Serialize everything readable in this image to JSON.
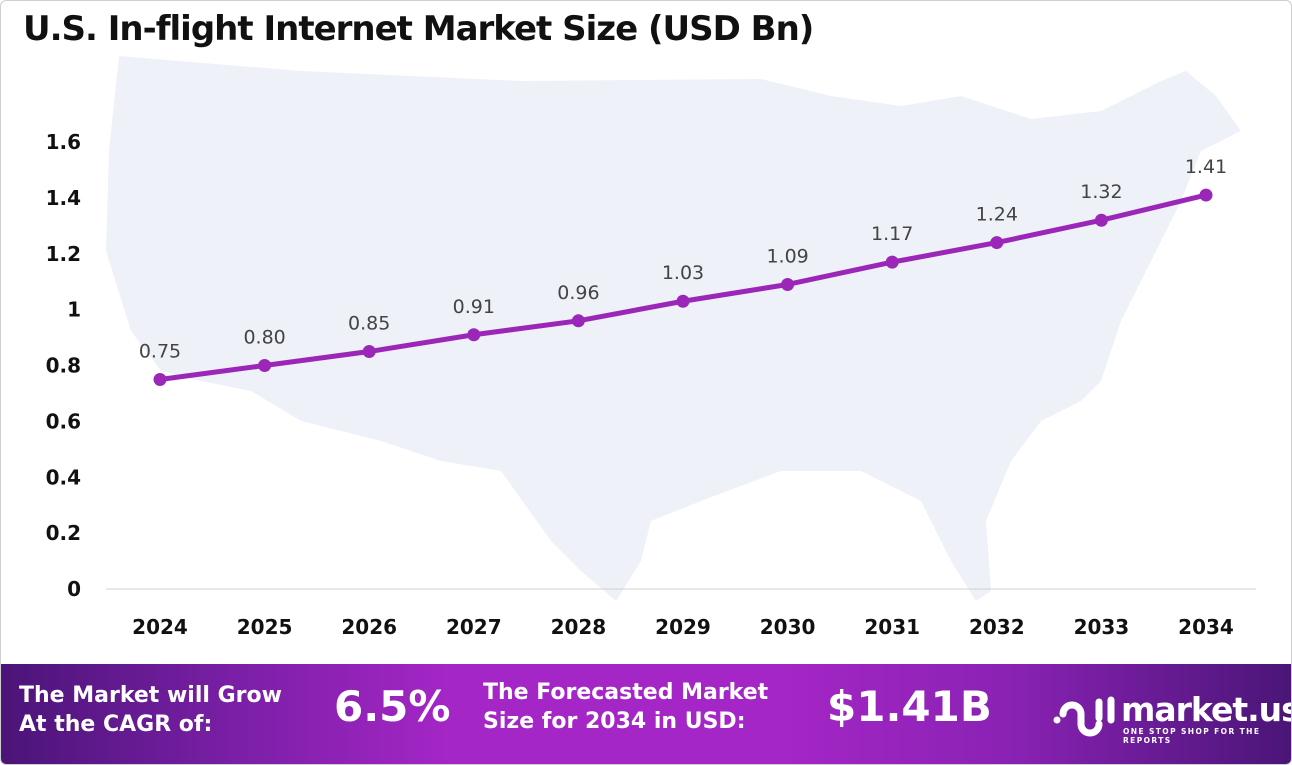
{
  "chart_data": {
    "type": "line",
    "title": "U.S. In-flight Internet Market Size (USD Bn)",
    "categories": [
      "2024",
      "2025",
      "2026",
      "2027",
      "2028",
      "2029",
      "2030",
      "2031",
      "2032",
      "2033",
      "2034"
    ],
    "values": [
      0.75,
      0.8,
      0.85,
      0.91,
      0.96,
      1.03,
      1.09,
      1.17,
      1.24,
      1.32,
      1.41
    ],
    "data_labels": [
      "0.75",
      "0.80",
      "0.85",
      "0.91",
      "0.96",
      "1.03",
      "1.09",
      "1.17",
      "1.24",
      "1.32",
      "1.41"
    ],
    "yticks": [
      "0",
      "0.2",
      "0.4",
      "0.6",
      "0.8",
      "1",
      "1.2",
      "1.4",
      "1.6"
    ],
    "ylim": [
      0,
      1.6
    ],
    "xlabel": "",
    "ylabel": "",
    "grid": false,
    "line_color": "#9b27b8",
    "background": "US map silhouette"
  },
  "footer": {
    "cagr_label": "The Market will Grow At the CAGR of:",
    "cagr_line1": "The Market will Grow",
    "cagr_line2": "At the CAGR of:",
    "cagr_value": "6.5%",
    "forecast_line1": "The Forecasted Market",
    "forecast_line2": "Size for 2034 in USD:",
    "forecast_value": "$1.41B"
  },
  "logo": {
    "name": "market.us",
    "tagline": "ONE STOP SHOP FOR THE REPORTS"
  }
}
